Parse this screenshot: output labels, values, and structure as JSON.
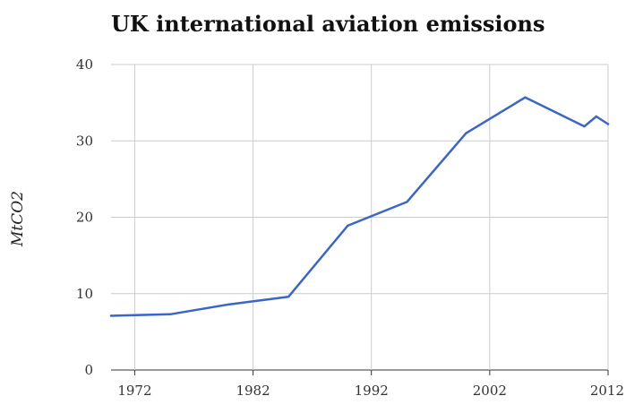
{
  "chart_data": {
    "type": "line",
    "title": "UK international aviation emissions",
    "xlabel": "",
    "ylabel": "MtCO2",
    "xlim": [
      1970,
      2012
    ],
    "ylim": [
      0,
      40
    ],
    "xticks": [
      1972,
      1982,
      1992,
      2002,
      2012
    ],
    "yticks": [
      0,
      10,
      20,
      30,
      40
    ],
    "grid": true,
    "colors": {
      "line": "#3a66c8",
      "grid": "#cccccc"
    },
    "series": [
      {
        "x": [
          1970,
          1975,
          1980,
          1985,
          1990,
          1995,
          2000,
          2005,
          2010,
          2011,
          2012
        ],
        "values": [
          7.1,
          7.3,
          8.6,
          9.6,
          18.9,
          22.0,
          31.0,
          35.7,
          31.9,
          33.2,
          32.2
        ]
      }
    ]
  }
}
